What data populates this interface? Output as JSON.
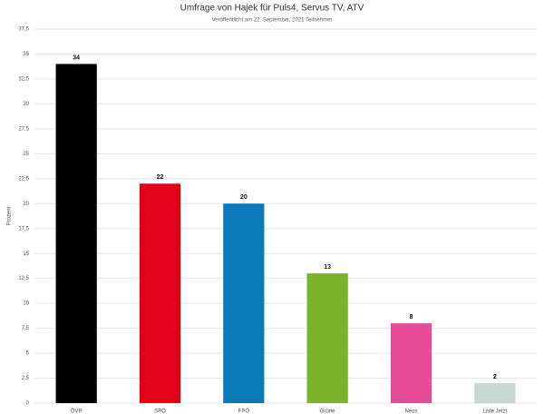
{
  "chart_data": {
    "type": "bar",
    "title": "Umfrage von Hajek für Puls4, Servus TV, ATV",
    "subtitle": "Veröffentlicht am 22. September, 2021 Teilnehmer",
    "y_label": "Prozent",
    "categories": [
      "ÖVP",
      "SPÖ",
      "FPÖ",
      "Grüne",
      "Neos",
      "Liste Jetzt"
    ],
    "values": [
      34,
      22,
      20,
      13,
      8,
      2
    ],
    "colors": [
      "#000000",
      "#e2001a",
      "#0a7ab8",
      "#7cb12a",
      "#e84c96",
      "#c9d7d1"
    ],
    "ylim": [
      0,
      37.5
    ],
    "yticks": [
      0,
      {
        "value": 2.5,
        "label": "2,5"
      },
      5,
      {
        "value": 7.5,
        "label": "7,5"
      },
      10,
      {
        "value": 12.5,
        "label": "12,5"
      },
      15,
      {
        "value": 17.5,
        "label": "17,5"
      },
      20,
      {
        "value": 22.5,
        "label": "22,5"
      },
      25,
      {
        "value": 27.5,
        "label": "27,5"
      },
      30,
      {
        "value": 32.5,
        "label": "32,5"
      },
      35,
      {
        "value": 37.5,
        "label": "37,5"
      }
    ],
    "grid": true
  }
}
